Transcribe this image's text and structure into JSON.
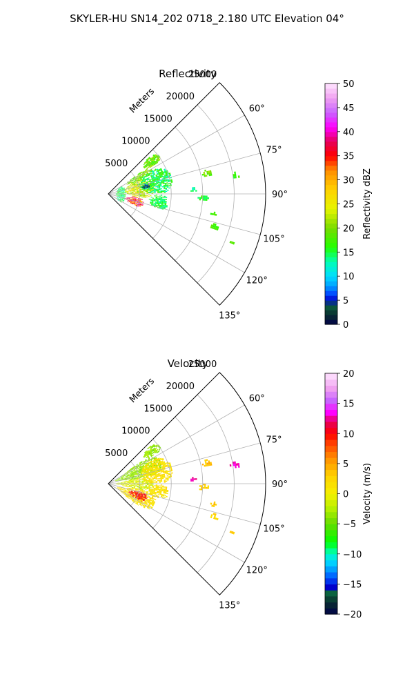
{
  "suptitle": "SKYLER-HU  SN14_202  0718_2.180 UTC Elevation 04°",
  "chart_data": [
    {
      "type": "heatmap",
      "projection": "polar-sector",
      "title": "Reflectivity",
      "r_label": "Meters",
      "r_ticks": [
        5000,
        10000,
        15000,
        20000,
        25000
      ],
      "r_tick_labels": [
        "5000",
        "10000",
        "15000",
        "20000",
        "25000"
      ],
      "r_max": 25000,
      "theta_range_deg": [
        45,
        135
      ],
      "theta_ticks_deg": [
        60,
        75,
        90,
        105,
        120,
        135
      ],
      "theta_tick_labels": [
        "60°",
        "75°",
        "90°",
        "105°",
        "120°",
        "135°"
      ],
      "grid": true,
      "colorbar": {
        "label": "Reflectivity dBZ",
        "min": 0,
        "max": 50,
        "ticks": [
          0,
          5,
          10,
          15,
          20,
          25,
          30,
          35,
          40,
          45,
          50
        ],
        "tick_labels": [
          "0",
          "5",
          "10",
          "15",
          "20",
          "25",
          "30",
          "35",
          "40",
          "45",
          "50"
        ],
        "levels": 50,
        "color_stops": [
          {
            "value": 0,
            "color": "#00004a"
          },
          {
            "value": 2,
            "color": "#0a2e2e"
          },
          {
            "value": 4,
            "color": "#0b6340"
          },
          {
            "value": 5,
            "color": "#0000cc"
          },
          {
            "value": 6.5,
            "color": "#0050ff"
          },
          {
            "value": 8,
            "color": "#00a0ff"
          },
          {
            "value": 10,
            "color": "#00dcff"
          },
          {
            "value": 13,
            "color": "#00ffb4"
          },
          {
            "value": 16,
            "color": "#22ff00"
          },
          {
            "value": 20,
            "color": "#78dc00"
          },
          {
            "value": 24,
            "color": "#e6f500"
          },
          {
            "value": 28,
            "color": "#ffd200"
          },
          {
            "value": 32,
            "color": "#ff8c00"
          },
          {
            "value": 35,
            "color": "#ff0000"
          },
          {
            "value": 38,
            "color": "#e6005a"
          },
          {
            "value": 41,
            "color": "#ff00ff"
          },
          {
            "value": 44,
            "color": "#c864ff"
          },
          {
            "value": 47,
            "color": "#f0a0f0"
          },
          {
            "value": 50,
            "color": "#ffe6ff"
          }
        ]
      },
      "echoes": [
        {
          "r": [
            1200,
            2700
          ],
          "theta": [
            60,
            124
          ],
          "value_range": [
            12,
            17
          ]
        },
        {
          "r": [
            2700,
            7200
          ],
          "theta": [
            64,
            96
          ],
          "value_range": [
            19,
            28
          ]
        },
        {
          "r": [
            2700,
            5600
          ],
          "theta": [
            96,
            114
          ],
          "value_range": [
            28,
            42
          ]
        },
        {
          "r": [
            3000,
            8000
          ],
          "theta": [
            56,
            66
          ],
          "value_range": [
            17,
            23
          ]
        },
        {
          "r": [
            7000,
            10000
          ],
          "theta": [
            48,
            58
          ],
          "value_range": [
            16,
            22
          ]
        },
        {
          "r": [
            5200,
            10200
          ],
          "theta": [
            62,
            89
          ],
          "value_range": [
            12,
            18
          ]
        },
        {
          "r": [
            6500,
            9500
          ],
          "theta": [
            91,
            106
          ],
          "value_range": [
            13,
            17
          ]
        },
        {
          "r": [
            5400,
            6600
          ],
          "theta": [
            75,
            82
          ],
          "value_range": [
            3,
            7
          ]
        },
        {
          "r": [
            15200,
            16600
          ],
          "theta": [
            76,
            80
          ],
          "value_range": [
            17,
            22
          ]
        },
        {
          "r": [
            19500,
            21000
          ],
          "theta": [
            80,
            82.5
          ],
          "value_range": [
            15,
            18
          ]
        },
        {
          "r": [
            12800,
            14000
          ],
          "theta": [
            85.5,
            88.5
          ],
          "value_range": [
            12,
            16
          ]
        },
        {
          "r": [
            14200,
            15800
          ],
          "theta": [
            90,
            93.5
          ],
          "value_range": [
            14,
            18
          ]
        },
        {
          "r": [
            16500,
            17500
          ],
          "theta": [
            99.5,
            102
          ],
          "value_range": [
            16,
            19
          ]
        },
        {
          "r": [
            16800,
            18200
          ],
          "theta": [
            105.5,
            108.5
          ],
          "value_range": [
            16,
            19
          ]
        },
        {
          "r": [
            20500,
            21300
          ],
          "theta": [
            110,
            111.5
          ],
          "value_range": [
            17,
            20
          ]
        }
      ]
    },
    {
      "type": "heatmap",
      "projection": "polar-sector",
      "title": "Velocity",
      "r_label": "Meters",
      "r_ticks": [
        5000,
        10000,
        15000,
        20000,
        25000
      ],
      "r_tick_labels": [
        "5000",
        "10000",
        "15000",
        "20000",
        "25000"
      ],
      "r_max": 25000,
      "theta_range_deg": [
        45,
        135
      ],
      "theta_ticks_deg": [
        60,
        75,
        90,
        105,
        120,
        135
      ],
      "theta_tick_labels": [
        "60°",
        "75°",
        "90°",
        "105°",
        "120°",
        "135°"
      ],
      "grid": true,
      "colorbar": {
        "label": "Velocity (m/s)",
        "min": -20,
        "max": 20,
        "ticks": [
          -20,
          -15,
          -10,
          -5,
          0,
          5,
          10,
          15,
          20
        ],
        "tick_labels": [
          "−20",
          "−15",
          "−10",
          "−5",
          "0",
          "5",
          "10",
          "15",
          "20"
        ],
        "levels": 40,
        "color_stops": [
          {
            "value": -20,
            "color": "#00004a"
          },
          {
            "value": -18,
            "color": "#0a2e2e"
          },
          {
            "value": -16.5,
            "color": "#0b6340"
          },
          {
            "value": -15.5,
            "color": "#0000cc"
          },
          {
            "value": -14,
            "color": "#0050ff"
          },
          {
            "value": -12.5,
            "color": "#00a0ff"
          },
          {
            "value": -11,
            "color": "#00e6ff"
          },
          {
            "value": -9.5,
            "color": "#00ff96"
          },
          {
            "value": -8,
            "color": "#00ff00"
          },
          {
            "value": -5,
            "color": "#64dc00"
          },
          {
            "value": -2.5,
            "color": "#b4f000"
          },
          {
            "value": 0,
            "color": "#f5f000"
          },
          {
            "value": 3,
            "color": "#ffd200"
          },
          {
            "value": 6,
            "color": "#ff8c00"
          },
          {
            "value": 8.5,
            "color": "#ff3c00"
          },
          {
            "value": 10,
            "color": "#ff0000"
          },
          {
            "value": 12,
            "color": "#e6005a"
          },
          {
            "value": 13.5,
            "color": "#ff00ff"
          },
          {
            "value": 15.5,
            "color": "#c864ff"
          },
          {
            "value": 17.5,
            "color": "#f0a0f0"
          },
          {
            "value": 20,
            "color": "#ffe6ff"
          }
        ]
      },
      "echoes": [
        {
          "r": [
            1200,
            9000
          ],
          "theta": [
            56,
            80
          ],
          "value_range": [
            -5,
            -2
          ]
        },
        {
          "r": [
            1200,
            7000
          ],
          "theta": [
            80,
            100
          ],
          "value_range": [
            -3,
            1
          ]
        },
        {
          "r": [
            1500,
            8000
          ],
          "theta": [
            100,
            126
          ],
          "value_range": [
            0,
            3
          ]
        },
        {
          "r": [
            3500,
            6500
          ],
          "theta": [
            104,
            118
          ],
          "value_range": [
            8,
            12
          ]
        },
        {
          "r": [
            7000,
            10000
          ],
          "theta": [
            48,
            58
          ],
          "value_range": [
            -5,
            -2
          ]
        },
        {
          "r": [
            5200,
            10200
          ],
          "theta": [
            62,
            89
          ],
          "value_range": [
            0,
            3
          ]
        },
        {
          "r": [
            6500,
            9500
          ],
          "theta": [
            91,
            106
          ],
          "value_range": [
            0,
            3
          ]
        },
        {
          "r": [
            15200,
            16600
          ],
          "theta": [
            76,
            80
          ],
          "value_range": [
            2,
            5
          ]
        },
        {
          "r": [
            19500,
            21000
          ],
          "theta": [
            80,
            82.5
          ],
          "value_range": [
            12,
            13.5
          ]
        },
        {
          "r": [
            12800,
            14000
          ],
          "theta": [
            85.5,
            88.5
          ],
          "value_range": [
            12,
            13.5
          ]
        },
        {
          "r": [
            14200,
            15800
          ],
          "theta": [
            90,
            93.5
          ],
          "value_range": [
            1,
            4
          ]
        },
        {
          "r": [
            16500,
            17500
          ],
          "theta": [
            99.5,
            102
          ],
          "value_range": [
            2,
            5
          ]
        },
        {
          "r": [
            16800,
            18200
          ],
          "theta": [
            105.5,
            108.5
          ],
          "value_range": [
            1,
            4
          ]
        },
        {
          "r": [
            20500,
            21300
          ],
          "theta": [
            110,
            111.5
          ],
          "value_range": [
            2,
            5
          ]
        }
      ]
    }
  ]
}
